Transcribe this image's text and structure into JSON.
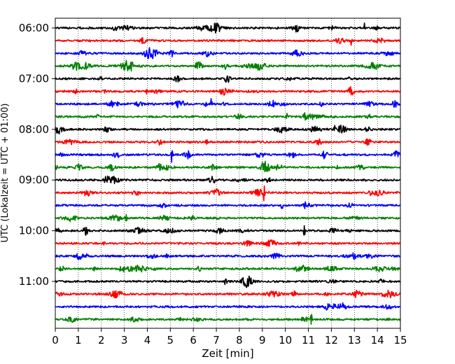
{
  "chart_data": {
    "type": "line",
    "title": "",
    "xlabel": "Zeit  [min]",
    "ylabel": "UTC (Lokalzeit = UTC + 01:00)",
    "xlim": [
      0,
      15
    ],
    "x_ticks": [
      0,
      1,
      2,
      3,
      4,
      5,
      6,
      7,
      8,
      9,
      10,
      11,
      12,
      13,
      14,
      15
    ],
    "y_ticks": [
      "06:00",
      "07:00",
      "08:00",
      "09:00",
      "10:00",
      "11:00"
    ],
    "grid": "vertical-dotted",
    "trace_interval_min": 15,
    "trace_colors": [
      "#000000",
      "#ff0000",
      "#0000ff",
      "#008000"
    ],
    "traces": [
      {
        "start": "06:00",
        "color_index": 0
      },
      {
        "start": "06:15",
        "color_index": 1
      },
      {
        "start": "06:30",
        "color_index": 2
      },
      {
        "start": "06:45",
        "color_index": 3
      },
      {
        "start": "07:00",
        "color_index": 0
      },
      {
        "start": "07:15",
        "color_index": 1
      },
      {
        "start": "07:30",
        "color_index": 2
      },
      {
        "start": "07:45",
        "color_index": 3
      },
      {
        "start": "08:00",
        "color_index": 0
      },
      {
        "start": "08:15",
        "color_index": 1
      },
      {
        "start": "08:30",
        "color_index": 2
      },
      {
        "start": "08:45",
        "color_index": 3
      },
      {
        "start": "09:00",
        "color_index": 0
      },
      {
        "start": "09:15",
        "color_index": 1
      },
      {
        "start": "09:30",
        "color_index": 2
      },
      {
        "start": "09:45",
        "color_index": 3
      },
      {
        "start": "10:00",
        "color_index": 0
      },
      {
        "start": "10:15",
        "color_index": 1
      },
      {
        "start": "10:30",
        "color_index": 2
      },
      {
        "start": "10:45",
        "color_index": 3
      },
      {
        "start": "11:00",
        "color_index": 0
      },
      {
        "start": "11:15",
        "color_index": 1
      },
      {
        "start": "11:30",
        "color_index": 2
      },
      {
        "start": "11:45",
        "color_index": 3
      }
    ]
  }
}
